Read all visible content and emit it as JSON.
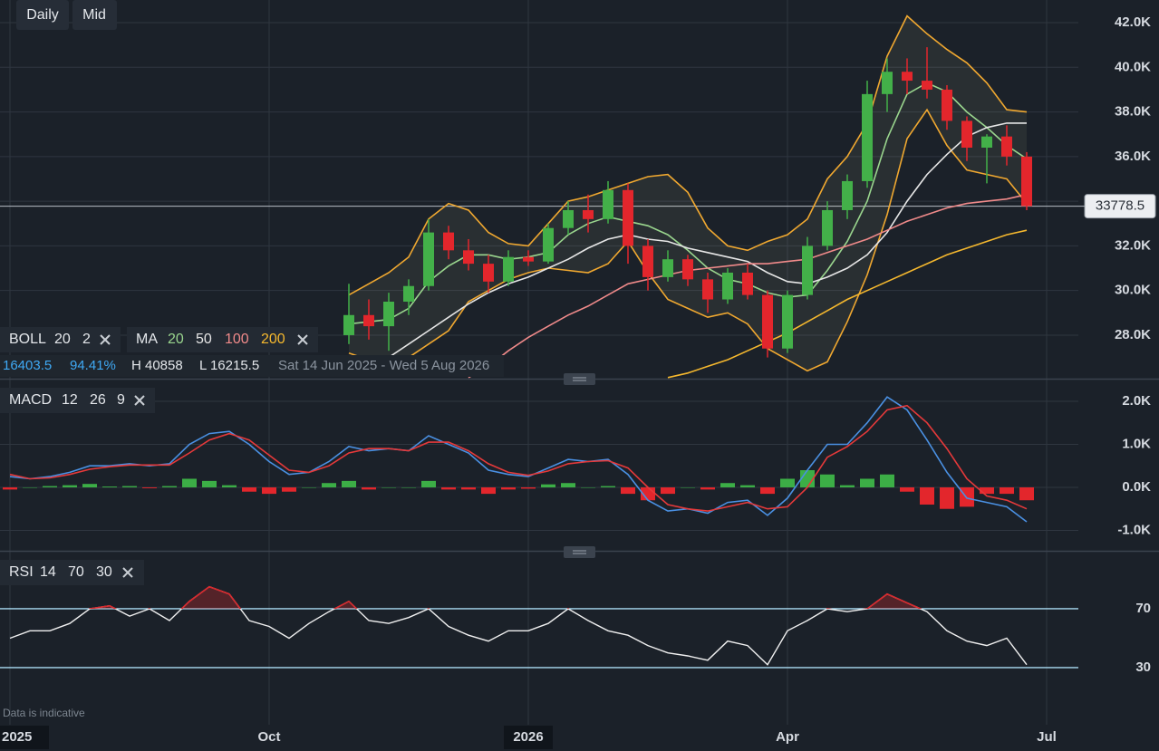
{
  "toolbar": {
    "interval": "Daily",
    "price_type": "Mid"
  },
  "boll_legend": {
    "name": "BOLL",
    "params": [
      "20",
      "2"
    ]
  },
  "ma_legend": {
    "name": "MA",
    "params": [
      {
        "label": "20",
        "color": "#9ad68e"
      },
      {
        "label": "50",
        "color": "#e6e6e6"
      },
      {
        "label": "100",
        "color": "#f08a8a"
      },
      {
        "label": "200",
        "color": "#f5b82e"
      }
    ]
  },
  "status": [
    "16403.5",
    "94.41%",
    "H 40858",
    "L 16215.5",
    "Sat 14 Jun 2025 - Wed 5 Aug 2026"
  ],
  "macd_legend": {
    "name": "MACD",
    "params": [
      "12",
      "26",
      "9"
    ]
  },
  "rsi_legend": {
    "name": "RSI",
    "params": [
      "14",
      "70",
      "30"
    ]
  },
  "note": "Data is indicative",
  "chart_data": [
    {
      "type": "candlestick",
      "categories": [
        "2025",
        null,
        null,
        null,
        null,
        null,
        null,
        null,
        null,
        null,
        null,
        null,
        null,
        "Oct",
        null,
        null,
        null,
        null,
        null,
        null,
        null,
        null,
        null,
        null,
        null,
        null,
        "2026",
        null,
        null,
        null,
        null,
        null,
        null,
        null,
        null,
        null,
        null,
        null,
        null,
        "Apr",
        null,
        null,
        null,
        null,
        null,
        null,
        null,
        null,
        null,
        null,
        null,
        null,
        "Jul",
        null
      ],
      "open": [
        null,
        null,
        null,
        null,
        null,
        null,
        null,
        null,
        null,
        null,
        null,
        null,
        null,
        null,
        null,
        null,
        null,
        28000,
        28900,
        28400,
        29500,
        30200,
        32600,
        31800,
        31200,
        30400,
        31500,
        31300,
        32800,
        33600,
        33200,
        34500,
        32000,
        30600,
        31400,
        30500,
        29600,
        30800,
        29800,
        27400,
        29800,
        32000,
        33600,
        34900,
        38800,
        39800,
        39400,
        39000,
        37600,
        36400,
        36900,
        36000,
        null,
        null
      ],
      "high": [
        null,
        null,
        null,
        null,
        null,
        null,
        null,
        null,
        null,
        null,
        null,
        null,
        null,
        null,
        null,
        null,
        null,
        30300,
        29600,
        29900,
        30500,
        33200,
        32900,
        32300,
        31600,
        31800,
        31800,
        33000,
        34000,
        34300,
        34900,
        34800,
        32300,
        31800,
        31600,
        30800,
        31000,
        31200,
        30000,
        30000,
        32400,
        34000,
        35200,
        39400,
        40400,
        40400,
        40900,
        39200,
        37800,
        37000,
        37400,
        36200,
        null,
        null
      ],
      "low": [
        null,
        null,
        null,
        null,
        null,
        null,
        null,
        null,
        null,
        null,
        null,
        null,
        null,
        null,
        null,
        null,
        null,
        27600,
        27800,
        27300,
        28900,
        30000,
        31400,
        30900,
        29900,
        30200,
        31100,
        31200,
        32500,
        32600,
        33000,
        31200,
        30000,
        30400,
        30200,
        29000,
        29400,
        29600,
        27000,
        27200,
        29600,
        31800,
        33200,
        34600,
        38000,
        38800,
        38600,
        37200,
        35800,
        34800,
        35600,
        33600,
        null,
        null
      ],
      "close": [
        null,
        null,
        null,
        null,
        null,
        null,
        null,
        null,
        null,
        null,
        null,
        null,
        null,
        null,
        null,
        null,
        null,
        28900,
        28400,
        29500,
        30200,
        32600,
        31800,
        31200,
        30400,
        31500,
        31300,
        32800,
        33600,
        33200,
        34500,
        32000,
        30600,
        31400,
        30500,
        29600,
        30800,
        29800,
        27400,
        29800,
        32000,
        33600,
        34900,
        38800,
        39800,
        39400,
        39000,
        37600,
        36400,
        36900,
        36000,
        33778.5,
        null,
        null
      ],
      "up_color": "#43b049",
      "down_color": "#e3262c",
      "series": [
        {
          "color": "#f0a830",
          "values": [
            null,
            null,
            null,
            null,
            null,
            null,
            null,
            null,
            null,
            null,
            null,
            null,
            null,
            null,
            null,
            null,
            null,
            29800,
            30300,
            30800,
            31500,
            33200,
            33900,
            33600,
            32600,
            32100,
            32000,
            33000,
            34000,
            34200,
            34500,
            34800,
            35100,
            35200,
            34400,
            32800,
            32000,
            31800,
            32200,
            32500,
            33200,
            35000,
            36000,
            37500,
            40500,
            42300,
            41500,
            40800,
            40200,
            39300,
            38100,
            38000,
            null,
            null
          ]
        },
        {
          "color": "#9ad68e",
          "values": [
            null,
            null,
            null,
            null,
            null,
            null,
            null,
            null,
            null,
            null,
            null,
            null,
            null,
            null,
            null,
            null,
            null,
            28500,
            28600,
            28700,
            29200,
            30400,
            31100,
            31600,
            31600,
            31400,
            31500,
            31700,
            32500,
            33000,
            33300,
            33100,
            32900,
            32500,
            31800,
            31000,
            30500,
            30300,
            29900,
            29700,
            29800,
            30900,
            32200,
            34000,
            36800,
            38800,
            39300,
            38900,
            38000,
            37300,
            36500,
            35900,
            null,
            null
          ]
        },
        {
          "color": "#f0a830",
          "values": [
            null,
            null,
            null,
            null,
            null,
            null,
            null,
            null,
            null,
            null,
            null,
            null,
            null,
            null,
            null,
            null,
            null,
            27200,
            26900,
            26700,
            27000,
            27600,
            28200,
            29500,
            30000,
            30500,
            30800,
            31000,
            30900,
            30800,
            31200,
            32200,
            30800,
            29600,
            29200,
            28800,
            29000,
            28500,
            27400,
            26900,
            26400,
            26800,
            28600,
            30700,
            33400,
            36800,
            38100,
            36500,
            35400,
            35200,
            35000,
            33900,
            null,
            null
          ]
        },
        {
          "color": "#e6e6e6",
          "values": [
            null,
            null,
            null,
            null,
            null,
            null,
            null,
            null,
            null,
            null,
            null,
            null,
            null,
            null,
            null,
            null,
            null,
            null,
            26600,
            27000,
            27600,
            28200,
            28800,
            29400,
            29900,
            30300,
            30600,
            31000,
            31400,
            31900,
            32300,
            32500,
            32300,
            32200,
            31900,
            31700,
            31500,
            31300,
            30800,
            30400,
            30300,
            30600,
            31000,
            31600,
            32600,
            34000,
            35200,
            36100,
            36900,
            37300,
            37500,
            37500,
            null,
            null
          ]
        },
        {
          "color": "#f08a8a",
          "values": [
            null,
            null,
            null,
            null,
            null,
            null,
            null,
            null,
            null,
            null,
            null,
            null,
            null,
            null,
            null,
            null,
            null,
            null,
            null,
            null,
            null,
            null,
            null,
            26100,
            26600,
            27300,
            27900,
            28400,
            28900,
            29300,
            29800,
            30300,
            30500,
            30700,
            30900,
            31000,
            31100,
            31200,
            31200,
            31300,
            31400,
            31700,
            32000,
            32300,
            32700,
            33100,
            33400,
            33700,
            33900,
            34000,
            34100,
            34300,
            null,
            null
          ]
        },
        {
          "color": "#f5b82e",
          "values": [
            null,
            null,
            null,
            null,
            null,
            null,
            null,
            null,
            null,
            null,
            null,
            null,
            null,
            null,
            null,
            null,
            null,
            null,
            null,
            null,
            null,
            null,
            null,
            null,
            null,
            null,
            null,
            null,
            null,
            null,
            null,
            null,
            null,
            26100,
            26300,
            26600,
            26900,
            27300,
            27700,
            28100,
            28600,
            29100,
            29600,
            30000,
            30400,
            30800,
            31200,
            31600,
            31900,
            32200,
            32500,
            32700,
            null,
            null
          ]
        }
      ],
      "band_color": "rgba(215,215,170,0.08)",
      "ylim": [
        26050,
        43015
      ],
      "yticks": [
        {
          "value": 28000,
          "label": "28.0K"
        },
        {
          "value": 30000,
          "label": "30.0K"
        },
        {
          "value": 32000,
          "label": "32.0K"
        },
        {
          "value": 34000,
          "label": "34.0K"
        },
        {
          "value": 36000,
          "label": "36.0K"
        },
        {
          "value": 38000,
          "label": "38.0K"
        },
        {
          "value": 40000,
          "label": "40.0K"
        },
        {
          "value": 42000,
          "label": "42.0K"
        }
      ],
      "grid": true
    },
    {
      "type": "macd",
      "series": [
        {
          "color": "#4a90e2",
          "values": [
            250,
            200,
            250,
            350,
            500,
            500,
            550,
            500,
            550,
            1000,
            1250,
            1300,
            1000,
            600,
            300,
            350,
            600,
            950,
            850,
            900,
            850,
            1200,
            1000,
            800,
            400,
            300,
            250,
            450,
            650,
            600,
            650,
            300,
            -300,
            -550,
            -500,
            -600,
            -350,
            -300,
            -650,
            -250,
            400,
            1000,
            1000,
            1500,
            2100,
            1800,
            1100,
            350,
            -250,
            -350,
            -450,
            -800,
            null,
            null
          ]
        },
        {
          "color": "#e5393a",
          "values": [
            300,
            200,
            220,
            300,
            420,
            480,
            520,
            520,
            520,
            800,
            1100,
            1250,
            1100,
            750,
            400,
            350,
            500,
            800,
            900,
            900,
            850,
            1050,
            1050,
            850,
            550,
            350,
            280,
            380,
            550,
            600,
            620,
            450,
            0,
            -400,
            -500,
            -550,
            -450,
            -350,
            -500,
            -450,
            0,
            700,
            950,
            1300,
            1800,
            1900,
            1500,
            900,
            200,
            -200,
            -300,
            -500,
            null,
            null
          ]
        }
      ],
      "histogram": {
        "up_color": "#3cae46",
        "down_color": "#e3262c",
        "values": [
          -50,
          0,
          30,
          50,
          80,
          20,
          30,
          -20,
          30,
          200,
          150,
          50,
          -100,
          -150,
          -100,
          0,
          100,
          150,
          -50,
          0,
          0,
          150,
          -50,
          -50,
          -150,
          -50,
          -30,
          70,
          100,
          0,
          30,
          -150,
          -300,
          -150,
          0,
          -50,
          100,
          50,
          -150,
          200,
          400,
          300,
          50,
          200,
          300,
          -100,
          -400,
          -500,
          -450,
          -150,
          -150,
          -300,
          null,
          null
        ]
      },
      "ylim": [
        -1474,
        2484
      ],
      "yticks": [
        {
          "value": -1000,
          "label": "-1.0K"
        },
        {
          "value": 0,
          "label": "0.0K"
        },
        {
          "value": 1000,
          "label": "1.0K"
        },
        {
          "value": 2000,
          "label": "2.0K"
        }
      ]
    },
    {
      "type": "rsi",
      "color": "#f0f0f0",
      "overbought_color": "#d9282c",
      "oversold_color": "#2eb04a",
      "level_color": "#a9dcf3",
      "values": [
        50,
        55,
        55,
        60,
        70,
        72,
        65,
        70,
        62,
        75,
        85,
        80,
        62,
        58,
        50,
        60,
        68,
        75,
        62,
        60,
        64,
        70,
        58,
        52,
        48,
        55,
        55,
        60,
        70,
        62,
        55,
        52,
        45,
        40,
        38,
        35,
        48,
        45,
        32,
        55,
        62,
        70,
        68,
        70,
        80,
        74,
        68,
        55,
        48,
        45,
        50,
        32,
        null,
        null
      ],
      "ylim": [
        -8.8,
        106.9
      ],
      "yticks": [
        30,
        70
      ]
    }
  ]
}
